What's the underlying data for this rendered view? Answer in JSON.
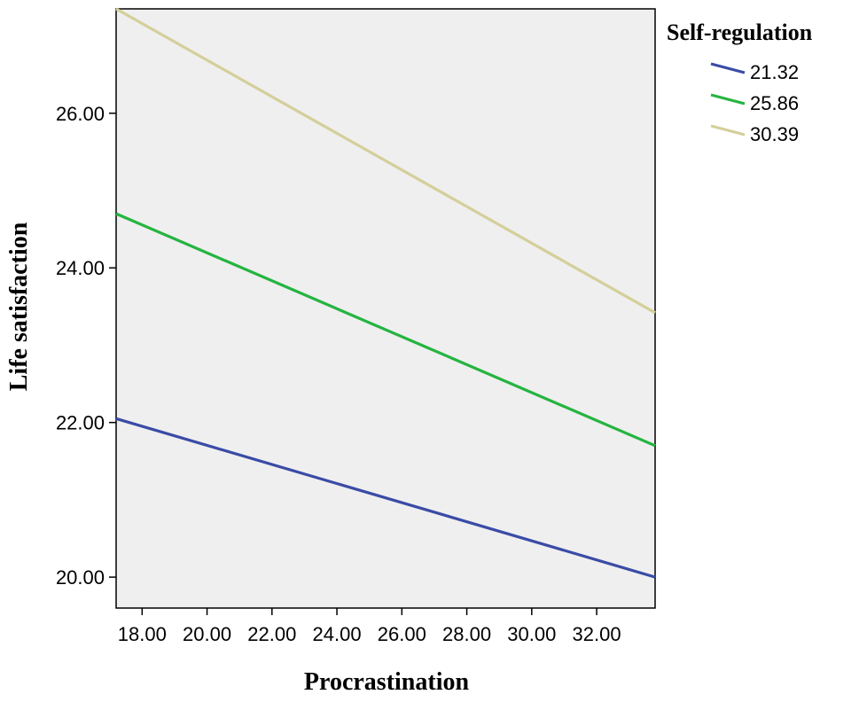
{
  "chart_data": {
    "type": "line",
    "xlabel": "Procrastination",
    "ylabel": "Life satisfaction",
    "xlim": [
      17.2,
      33.8
    ],
    "ylim": [
      19.6,
      27.35
    ],
    "x_ticks": [
      18,
      20,
      22,
      24,
      26,
      28,
      30,
      32
    ],
    "x_tick_labels": [
      "18.00",
      "20.00",
      "22.00",
      "24.00",
      "26.00",
      "28.00",
      "30.00",
      "32.00"
    ],
    "y_ticks": [
      20,
      22,
      24,
      26
    ],
    "y_tick_labels": [
      "20.00",
      "22.00",
      "24.00",
      "26.00"
    ],
    "grid": false,
    "background": "#efefef",
    "legend": {
      "title": "Self-regulation",
      "placement": "right"
    },
    "series": [
      {
        "name": "21.32",
        "color": "#3a4ba6",
        "x": [
          17.2,
          33.8
        ],
        "y": [
          22.05,
          20.0
        ]
      },
      {
        "name": "25.86",
        "color": "#25b440",
        "x": [
          17.2,
          33.8
        ],
        "y": [
          24.7,
          21.7
        ]
      },
      {
        "name": "30.39",
        "color": "#d4cf9a",
        "x": [
          17.2,
          33.8
        ],
        "y": [
          27.35,
          23.42
        ]
      }
    ]
  }
}
